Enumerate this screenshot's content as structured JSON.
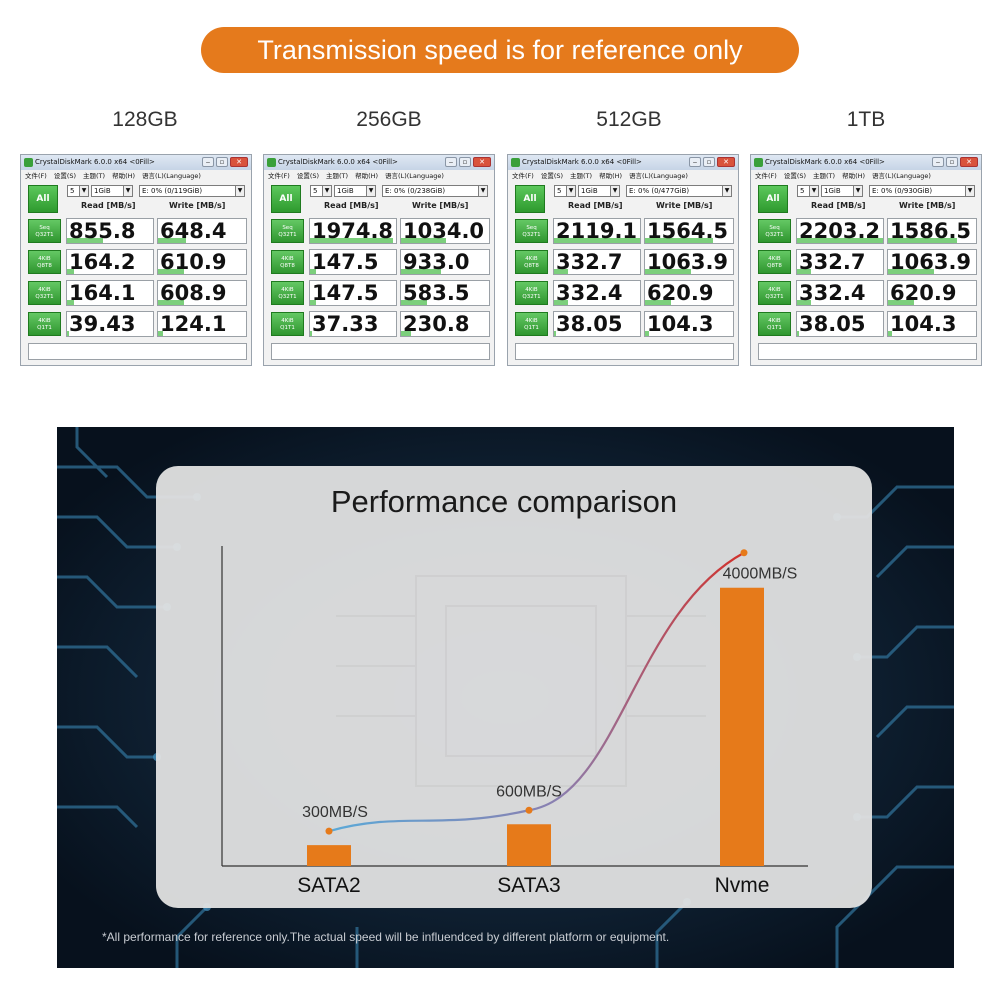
{
  "banner": {
    "text": "Transmission speed is for reference only"
  },
  "capacities": [
    "128GB",
    "256GB",
    "512GB",
    "1TB"
  ],
  "crystaldisk": {
    "window_title": "CrystalDiskMark 6.0.0 x64 <0Fill>",
    "menu": [
      "文件(F)",
      "设置(S)",
      "主题(T)",
      "帮助(H)",
      "语言(L)(Language)"
    ],
    "all_button": "All",
    "runs": "5",
    "size": "1GiB",
    "read_header": "Read [MB/s]",
    "write_header": "Write [MB/s]",
    "test_labels": [
      [
        "Seq",
        "Q32T1"
      ],
      [
        "4KiB",
        "Q8T8"
      ],
      [
        "4KiB",
        "Q32T1"
      ],
      [
        "4KiB",
        "Q1T1"
      ]
    ],
    "windows": [
      {
        "drive": "E: 0% (0/119GiB)",
        "results": [
          [
            "855.8",
            "648.4"
          ],
          [
            "164.2",
            "610.9"
          ],
          [
            "164.1",
            "608.9"
          ],
          [
            "39.43",
            "124.1"
          ]
        ],
        "fill": [
          [
            0.42,
            0.32
          ],
          [
            0.08,
            0.3
          ],
          [
            0.08,
            0.3
          ],
          [
            0.02,
            0.06
          ]
        ]
      },
      {
        "drive": "E: 0% (0/238GiB)",
        "results": [
          [
            "1974.8",
            "1034.0"
          ],
          [
            "147.5",
            "933.0"
          ],
          [
            "147.5",
            "583.5"
          ],
          [
            "37.33",
            "230.8"
          ]
        ],
        "fill": [
          [
            0.97,
            0.51
          ],
          [
            0.07,
            0.46
          ],
          [
            0.07,
            0.29
          ],
          [
            0.02,
            0.11
          ]
        ]
      },
      {
        "drive": "E: 0% (0/477GiB)",
        "results": [
          [
            "2119.1",
            "1564.5"
          ],
          [
            "332.7",
            "1063.9"
          ],
          [
            "332.4",
            "620.9"
          ],
          [
            "38.05",
            "104.3"
          ]
        ],
        "fill": [
          [
            1.0,
            0.77
          ],
          [
            0.16,
            0.52
          ],
          [
            0.16,
            0.3
          ],
          [
            0.02,
            0.05
          ]
        ]
      },
      {
        "drive": "E: 0% (0/930GiB)",
        "results": [
          [
            "2203.2",
            "1586.5"
          ],
          [
            "332.7",
            "1063.9"
          ],
          [
            "332.4",
            "620.9"
          ],
          [
            "38.05",
            "104.3"
          ]
        ],
        "fill": [
          [
            1.0,
            0.78
          ],
          [
            0.16,
            0.52
          ],
          [
            0.16,
            0.3
          ],
          [
            0.02,
            0.05
          ]
        ]
      }
    ]
  },
  "chart_data": {
    "type": "bar",
    "title": "Performance comparison",
    "categories": [
      "SATA2",
      "SATA3",
      "Nvme"
    ],
    "values": [
      300,
      600,
      4000
    ],
    "value_labels": [
      "300MB/S",
      "600MB/S",
      "4000MB/S"
    ],
    "unit": "MB/S",
    "ylim": [
      0,
      4600
    ],
    "bar_color": "#e67a1a",
    "curve_colors": [
      "#5aa9d8",
      "#8a7fb0",
      "#d2302a"
    ],
    "xlabel": "",
    "ylabel": ""
  },
  "footnote": "*All performance for reference only.The actual speed will be influendced by different platform or equipment."
}
